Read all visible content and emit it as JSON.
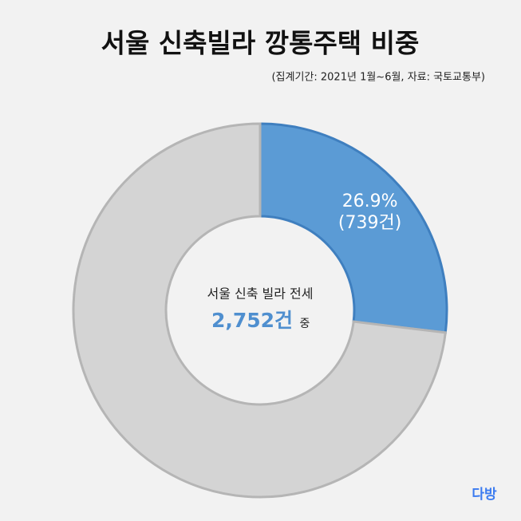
{
  "chart_data": {
    "type": "donut",
    "title": "서울 신축빌라 깡통주택 비중",
    "subtitle": "(집계기간: 2021년 1월~6월, 자료: 국토교통부)",
    "categories": [
      null,
      null
    ],
    "values": [
      26.9,
      73.1
    ],
    "value_labels": [
      "26.9%",
      null
    ],
    "value_sublabels": [
      "(739건)",
      null
    ],
    "colors": [
      "#5b9bd5",
      "#d4d4d4"
    ],
    "center_text": "서울 신축 빌라 전세",
    "center_total": "2,752건",
    "center_suffix": "중",
    "logo": "다방"
  }
}
